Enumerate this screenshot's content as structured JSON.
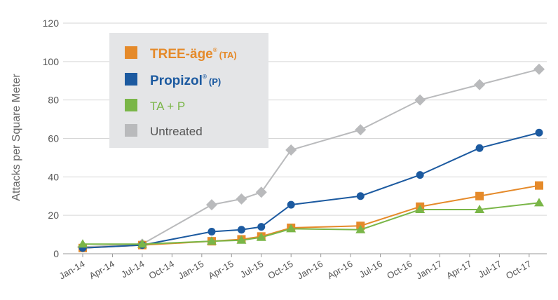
{
  "chart_data": {
    "type": "line",
    "ylabel": "Attacks per Square Meter",
    "xlabel": "",
    "ylim": [
      0,
      120
    ],
    "yticks": [
      0,
      20,
      40,
      60,
      80,
      100,
      120
    ],
    "x_ticks": [
      "Jan-14",
      "Apr-14",
      "Jul-14",
      "Oct-14",
      "Jan-15",
      "Apr-15",
      "Jul-15",
      "Oct-15",
      "Jan-16",
      "Apr-16",
      "Jul-16",
      "Oct-16",
      "Jan-17",
      "Apr-17",
      "Jul-17",
      "Oct-17"
    ],
    "grid": true,
    "legend": "top-left",
    "series": [
      {
        "key": "treeage",
        "name_brand": "TREE-äge",
        "name_sup": "®",
        "name_suffix": "(TA)",
        "color": "#e58a2a",
        "marker": "square",
        "x": [
          "Jan-14",
          "Jul-14",
          "Feb-15",
          "May-15",
          "Jul-15",
          "Oct-15",
          "May-16",
          "Nov-16",
          "May-17",
          "Nov-17"
        ],
        "values": [
          3,
          4.5,
          6.5,
          7.5,
          9,
          13.5,
          14.5,
          24.5,
          30,
          35.5
        ]
      },
      {
        "key": "propizol",
        "name_brand": "Propizol",
        "name_sup": "®",
        "name_suffix": "(P)",
        "color": "#1c5aa0",
        "marker": "circle",
        "x": [
          "Jan-14",
          "Jul-14",
          "Feb-15",
          "May-15",
          "Jul-15",
          "Oct-15",
          "May-16",
          "Nov-16",
          "May-17",
          "Nov-17"
        ],
        "values": [
          3,
          4.5,
          11.5,
          12.5,
          14,
          25.5,
          30,
          41,
          55,
          63
        ]
      },
      {
        "key": "tap",
        "name": "TA + P",
        "color": "#7ab648",
        "marker": "triangle",
        "x": [
          "Jan-14",
          "Jul-14",
          "Feb-15",
          "May-15",
          "Jul-15",
          "Oct-15",
          "May-16",
          "Nov-16",
          "May-17",
          "Nov-17"
        ],
        "values": [
          5,
          5,
          6.5,
          7,
          8.5,
          13,
          12.5,
          23,
          23,
          26.5
        ]
      },
      {
        "key": "untreated",
        "name": "Untreated",
        "color": "#b9babc",
        "marker": "diamond",
        "x": [
          "Jan-14",
          "Jul-14",
          "Feb-15",
          "May-15",
          "Jul-15",
          "Oct-15",
          "May-16",
          "Nov-16",
          "May-17",
          "Nov-17"
        ],
        "values": [
          3.5,
          5,
          25.5,
          28.5,
          32,
          54,
          64.5,
          80,
          88,
          96
        ]
      }
    ]
  }
}
